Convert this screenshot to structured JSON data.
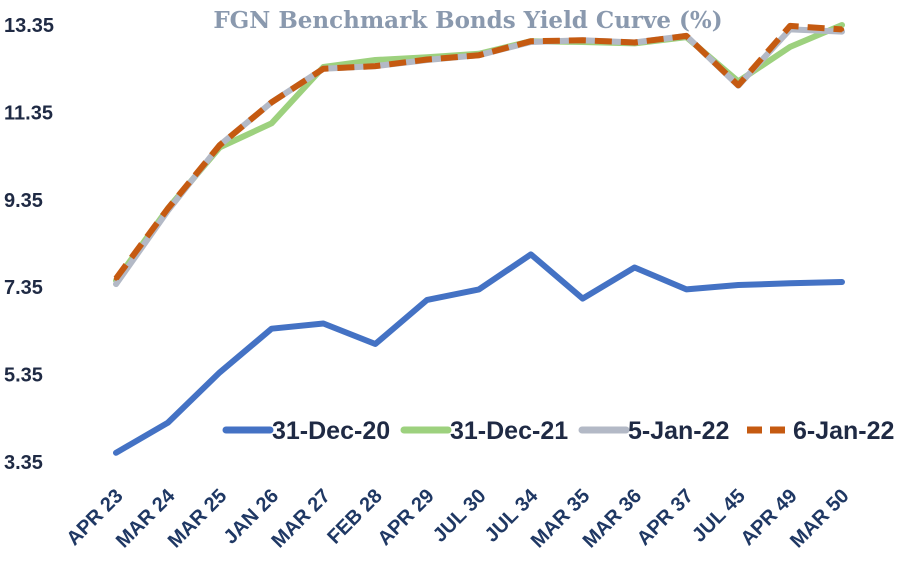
{
  "chart_data": {
    "type": "line",
    "title": "FGN Benchmark Bonds Yield Curve (%)",
    "xlabel": "",
    "ylabel": "",
    "categories": [
      "APR 23",
      "MAR 24",
      "MAR 25",
      "JAN 26",
      "MAR 27",
      "FEB 28",
      "APR 29",
      "JUL 30",
      "JUL 34",
      "MAR 35",
      "MAR 36",
      "APR 37",
      "JUL 45",
      "APR 49",
      "MAR 50"
    ],
    "yticks": [
      "3.35",
      "5.35",
      "7.35",
      "9.35",
      "11.35",
      "13.35"
    ],
    "ylim": [
      3.35,
      13.35
    ],
    "grid": false,
    "legend_position": "bottom-right",
    "series": [
      {
        "name": "31-Dec-20",
        "color": "#4472c4",
        "dash": false,
        "width": 6,
        "values": [
          3.56,
          4.25,
          5.4,
          6.4,
          6.52,
          6.05,
          7.06,
          7.3,
          8.1,
          7.09,
          7.8,
          7.3,
          7.4,
          7.44,
          7.47
        ]
      },
      {
        "name": "31-Dec-21",
        "color": "#9dd17e",
        "dash": false,
        "width": 6,
        "values": [
          7.5,
          9.15,
          10.55,
          11.1,
          12.39,
          12.55,
          12.61,
          12.69,
          12.98,
          12.96,
          12.93,
          13.07,
          12.06,
          12.85,
          13.35
        ]
      },
      {
        "name": "5-Jan-22",
        "color": "#b3b9c6",
        "dash": false,
        "width": 6,
        "values": [
          7.42,
          9.1,
          10.6,
          11.58,
          12.35,
          12.41,
          12.55,
          12.66,
          12.96,
          13.0,
          12.95,
          13.1,
          11.96,
          13.25,
          13.2
        ]
      },
      {
        "name": "6-Jan-22",
        "color": "#c55a11",
        "dash": true,
        "width": 6,
        "values": [
          7.55,
          9.15,
          10.6,
          11.58,
          12.35,
          12.41,
          12.56,
          12.66,
          12.98,
          13.0,
          12.95,
          13.1,
          11.97,
          13.33,
          13.25
        ]
      }
    ]
  }
}
